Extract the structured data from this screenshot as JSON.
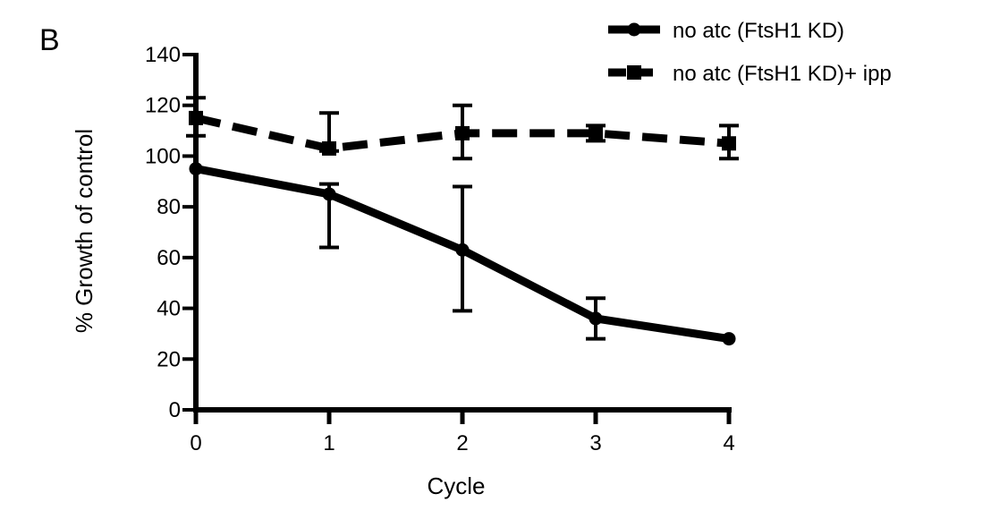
{
  "panel_label": "B",
  "chart_data": {
    "type": "line",
    "title": "",
    "xlabel": "Cycle",
    "ylabel": "% Growth of control",
    "xlim": [
      0,
      4
    ],
    "ylim": [
      0,
      140
    ],
    "xticks": [
      "0",
      "1",
      "2",
      "3",
      "4"
    ],
    "yticks": [
      "0",
      "20",
      "40",
      "60",
      "80",
      "100",
      "120",
      "140"
    ],
    "grid": false,
    "legend_position": "top-right",
    "x": [
      0,
      1,
      2,
      3,
      4
    ],
    "series": [
      {
        "name": "no atc (FtsH1 KD)",
        "style": "solid",
        "marker": "circle",
        "color": "#000000",
        "values": [
          95,
          85,
          63,
          36,
          28
        ],
        "error_low": [
          95,
          64,
          39,
          28,
          28
        ],
        "error_high": [
          95,
          89,
          88,
          44,
          28
        ]
      },
      {
        "name": "no atc (FtsH1 KD)+ ipp",
        "style": "dashed",
        "marker": "square",
        "color": "#000000",
        "values": [
          115,
          103,
          109,
          109,
          105
        ],
        "error_low": [
          108,
          102,
          99,
          106,
          99
        ],
        "error_high": [
          123,
          117,
          120,
          112,
          112
        ]
      }
    ]
  }
}
